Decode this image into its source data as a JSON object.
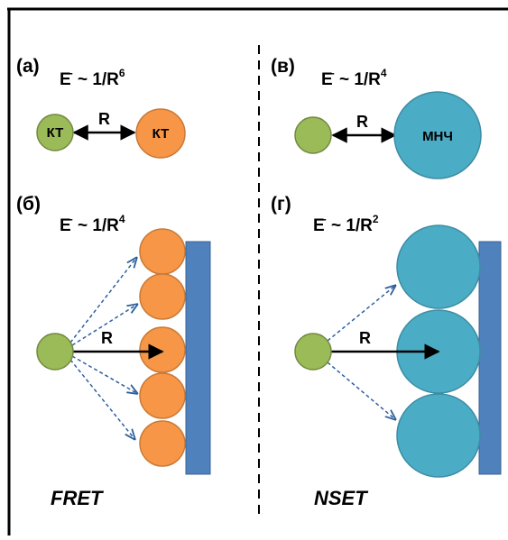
{
  "panels": {
    "a": {
      "label": "(а)",
      "formula_main": "E",
      "formula_sup_minus": "-",
      "formula_rest": " ~ 1/R",
      "formula_power": "6",
      "distance": "R",
      "donor_text": "КТ",
      "acceptor_text": "КТ"
    },
    "v": {
      "label": "(в)",
      "formula_main": "E",
      "formula_sup_minus": "-",
      "formula_rest": " ~ 1/R",
      "formula_power": "4",
      "distance": "R",
      "acceptor_text": "МНЧ"
    },
    "b": {
      "label": "(б)",
      "formula_main": "E",
      "formula_sup_minus": "-",
      "formula_rest": " ~ 1/R",
      "formula_power": "4",
      "distance": "R"
    },
    "g": {
      "label": "(г)",
      "formula_main": "E",
      "formula_sup_minus": "-",
      "formula_rest": " ~ 1/R",
      "formula_power": "2",
      "distance": "R"
    }
  },
  "footer": {
    "left": "FRET",
    "right": "NSET"
  },
  "colors": {
    "donor_green": "#9bbb59",
    "donor_green_stroke": "#71893f",
    "qd_orange": "#f79646",
    "qd_orange_stroke": "#c87a38",
    "np_cyan": "#4bacc6",
    "np_cyan_stroke": "#3d8da3",
    "substrate_blue": "#4f81bd",
    "dashed_arrow": "#2e5f9e"
  }
}
